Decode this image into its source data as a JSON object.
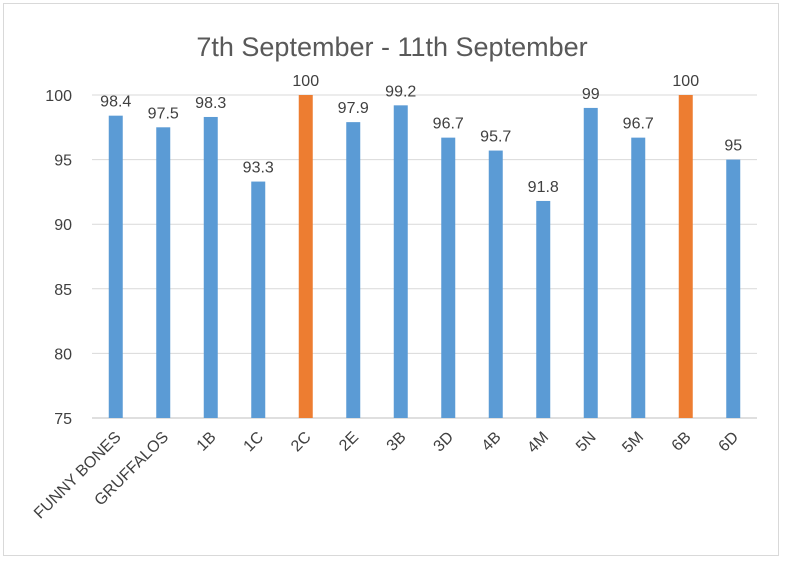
{
  "chart_data": {
    "type": "bar",
    "title": "7th September - 11th September",
    "categories": [
      "FUNNY BONES",
      "GRUFFALOS",
      "1B",
      "1C",
      "2C",
      "2E",
      "3B",
      "3D",
      "4B",
      "4M",
      "5N",
      "5M",
      "6B",
      "6D"
    ],
    "values": [
      98.4,
      97.5,
      98.3,
      93.3,
      100,
      97.9,
      99.2,
      96.7,
      95.7,
      91.8,
      99,
      96.7,
      100,
      95
    ],
    "data_labels": [
      "98.4",
      "97.5",
      "98.3",
      "93.3",
      "100",
      "97.9",
      "99.2",
      "96.7",
      "95.7",
      "91.8",
      "99",
      "96.7",
      "100",
      "95"
    ],
    "highlight": [
      false,
      false,
      false,
      false,
      true,
      false,
      false,
      false,
      false,
      false,
      false,
      false,
      true,
      false
    ],
    "ylim": [
      75,
      100
    ],
    "yticks": [
      "75",
      "80",
      "85",
      "90",
      "95",
      "100"
    ],
    "grid": true,
    "legend": "none",
    "colors": {
      "bar": "#5b9bd5",
      "highlight": "#ed7d31"
    }
  }
}
